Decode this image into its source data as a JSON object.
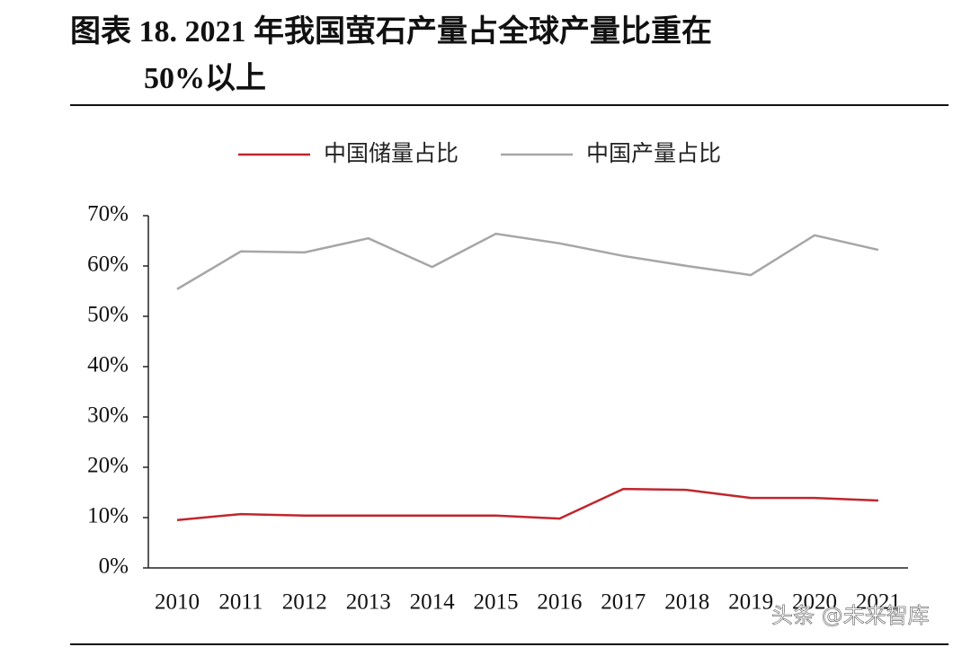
{
  "chart_data": {
    "type": "line",
    "title": [
      "图表 18. 2021 年我国萤石产量占全球产量比重在",
      "50%以上"
    ],
    "categories": [
      "2010",
      "2011",
      "2012",
      "2013",
      "2014",
      "2015",
      "2016",
      "2017",
      "2018",
      "2019",
      "2020",
      "2021"
    ],
    "series": [
      {
        "name": "中国储量占比",
        "color": "#c0262d",
        "values": [
          9.5,
          10.7,
          10.4,
          10.4,
          10.4,
          10.4,
          9.8,
          15.7,
          15.5,
          13.9,
          13.9,
          13.4
        ]
      },
      {
        "name": "中国产量占比",
        "color": "#a6a6a6",
        "values": [
          55.4,
          62.9,
          62.7,
          65.5,
          59.8,
          66.4,
          64.5,
          62.0,
          60.0,
          58.2,
          66.1,
          63.2
        ]
      }
    ],
    "ylim": [
      0,
      70
    ],
    "yticks": [
      {
        "value": 0,
        "label": "0%"
      },
      {
        "value": 10,
        "label": "10%"
      },
      {
        "value": 20,
        "label": "20%"
      },
      {
        "value": 30,
        "label": "30%"
      },
      {
        "value": 40,
        "label": "40%"
      },
      {
        "value": 50,
        "label": "50%"
      },
      {
        "value": 60,
        "label": "60%"
      },
      {
        "value": 70,
        "label": "70%"
      }
    ],
    "grid": false,
    "legend": "top"
  },
  "watermark": "头条 @未来智库"
}
